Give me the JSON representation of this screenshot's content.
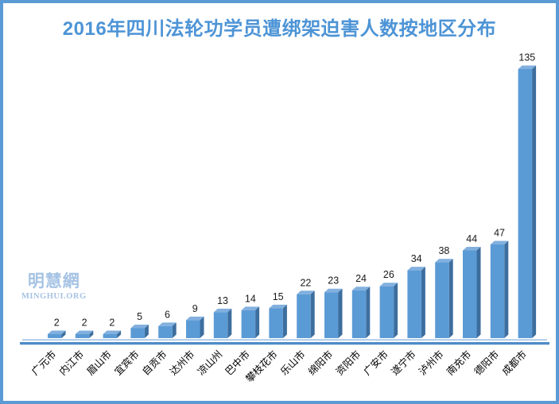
{
  "frame": {
    "border_color": "#5b9bd5",
    "background": "#ffffff"
  },
  "title": {
    "text": "2016年四川法轮功学员遭绑架迫害人数按地区分布",
    "color": "#4d94d6"
  },
  "watermark": {
    "cn": "明慧網",
    "en": "MINGHUI.ORG",
    "color": "#a6c3e4"
  },
  "chart_data": {
    "type": "bar",
    "title": "2016年四川法轮功学员遭绑架迫害人数按地区分布",
    "categories": [
      "广元市",
      "内江市",
      "眉山市",
      "宜宾市",
      "自贡市",
      "达州市",
      "凉山州",
      "巴中市",
      "攀枝花市",
      "乐山市",
      "绵阳市",
      "资阳市",
      "广安市",
      "遂宁市",
      "泸州市",
      "南充市",
      "德阳市",
      "成都市"
    ],
    "values": [
      2,
      2,
      2,
      5,
      6,
      9,
      13,
      14,
      15,
      22,
      23,
      24,
      26,
      34,
      38,
      44,
      47,
      135
    ],
    "xlabel": "",
    "ylabel": "",
    "ylim": [
      0,
      140
    ],
    "grid": false,
    "legend": false,
    "value_labels_shown": true,
    "bar_style": "3d",
    "category_label_rotation_deg": -45,
    "colors": {
      "bar_front": "#5b9bd5",
      "bar_side": "#3d6e9e",
      "bar_top": "#82b0de",
      "axis_line_thin": "#93b7de",
      "axis_line_thick": "#4e8bc8",
      "value_label": "#1a1a1a",
      "category_label": "#000000"
    }
  }
}
